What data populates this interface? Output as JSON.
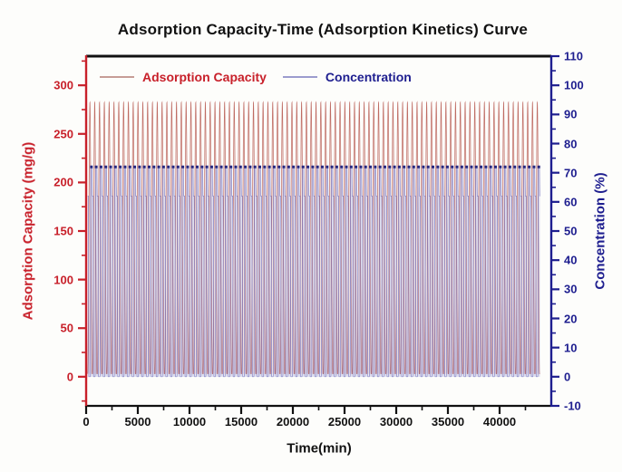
{
  "page": {
    "background": "#fdfdfb"
  },
  "title": "Adsorption Capacity-Time (Adsorption Kinetics) Curve",
  "legend": {
    "items": [
      {
        "label": "Adsorption Capacity",
        "text_color": "#c8202a",
        "swatch_color": "#c79d97"
      },
      {
        "label": "Concentration",
        "text_color": "#1e1e8f",
        "swatch_color": "#9c9cce"
      }
    ]
  },
  "chart_data": {
    "type": "line",
    "title": "Adsorption Capacity-Time (Adsorption Kinetics) Curve",
    "xlabel": "Time(min)",
    "ylabel_left": "Adsorption Capacity (mg/g)",
    "ylabel_right": "Concentration (%)",
    "grid": false,
    "legend_position": "top-inside",
    "x_axis": {
      "min": 0,
      "max": 45000,
      "major_ticks": [
        0,
        5000,
        10000,
        15000,
        20000,
        25000,
        30000,
        35000,
        40000
      ],
      "minor_step": 2500,
      "minor_min": 2500,
      "minor_max": 42500,
      "color": "#111111"
    },
    "left_axis": {
      "min": -30,
      "max": 330,
      "major_ticks": [
        0,
        50,
        100,
        150,
        200,
        250,
        300
      ],
      "minor_step": 25,
      "minor_min": -25,
      "minor_max": 325,
      "color": "#c8202a"
    },
    "right_axis": {
      "min": -10,
      "max": 110,
      "major_ticks": [
        -10,
        0,
        10,
        20,
        30,
        40,
        50,
        60,
        70,
        80,
        90,
        100,
        110
      ],
      "minor_step": 5,
      "minor_min": -5,
      "minor_max": 105,
      "color": "#1e1e8f"
    },
    "series": [
      {
        "name": "Adsorption Capacity",
        "axis": "left",
        "line_color": "rgba(188,100,92,0.95)",
        "fill_color": "rgba(205,125,115,0.20)",
        "shape": "rounded-triangle-wave",
        "value_min": 3,
        "value_max": 283,
        "cycles": 94,
        "t_start": 150,
        "t_end": 43900,
        "phase_offset": 0
      },
      {
        "name": "Concentration",
        "axis": "right",
        "line_color": "rgba(128,128,198,0.95)",
        "fill_color": "rgba(125,125,200,0.25)",
        "shape": "two-step-trapezoid-wave",
        "value_min": 0,
        "value_max": 72,
        "plateau_secondary": 62,
        "cycles": 94,
        "t_start": 150,
        "t_end": 43900,
        "phase_offset": 0.45,
        "marker": {
          "shape": "square",
          "color": "#26267e",
          "size": 3,
          "value": 72
        }
      }
    ]
  }
}
